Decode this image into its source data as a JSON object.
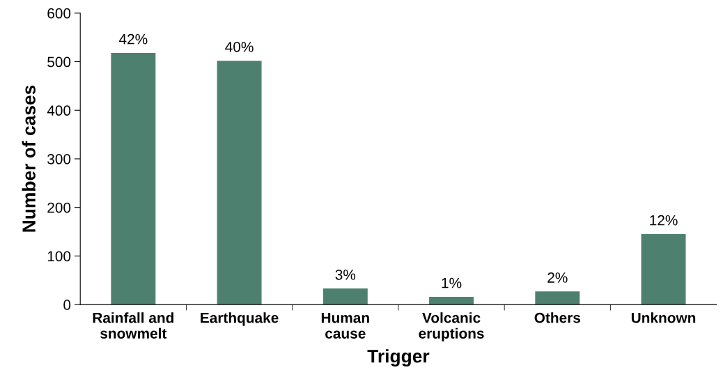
{
  "chart_data": {
    "type": "bar",
    "xlabel": "Trigger",
    "ylabel": "Number of cases",
    "categories": [
      "Rainfall and\nsnowmelt",
      "Earthquake",
      "Human\ncause",
      "Volcanic\neruptions",
      "Others",
      "Unknown"
    ],
    "values": [
      518,
      502,
      33,
      16,
      27,
      145
    ],
    "annotations": [
      {
        "text": "42%",
        "x": "Rainfall and\nsnowmelt",
        "y": 518
      },
      {
        "text": "40%",
        "x": "Earthquake",
        "y": 502
      },
      {
        "text": "3%",
        "x": "Human\ncause",
        "y": 33
      },
      {
        "text": "1%",
        "x": "Volcanic\neruptions",
        "y": 16
      },
      {
        "text": "2%",
        "x": "Others",
        "y": 27
      },
      {
        "text": "12%",
        "x": "Unknown",
        "y": 145
      }
    ],
    "color": "#4e8070",
    "ylim": [
      0,
      600
    ],
    "yticks": [
      0,
      100,
      200,
      300,
      400,
      500,
      600
    ],
    "grid": false
  }
}
